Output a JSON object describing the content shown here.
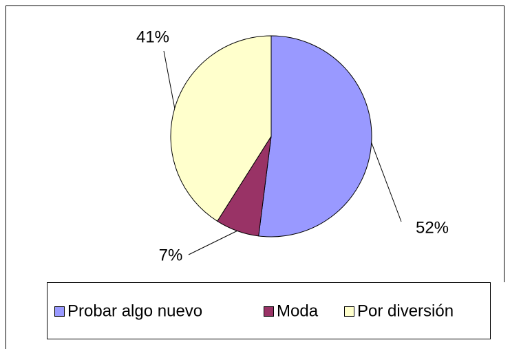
{
  "chart_data": {
    "type": "pie",
    "categories": [
      "Probar algo nuevo",
      "Moda",
      "Por diversión"
    ],
    "values": [
      52,
      7,
      41
    ],
    "value_labels": [
      "52%",
      "7%",
      "41%"
    ],
    "colors": [
      "#9999ff",
      "#993366",
      "#ffffcc"
    ],
    "legend": "bottom"
  }
}
